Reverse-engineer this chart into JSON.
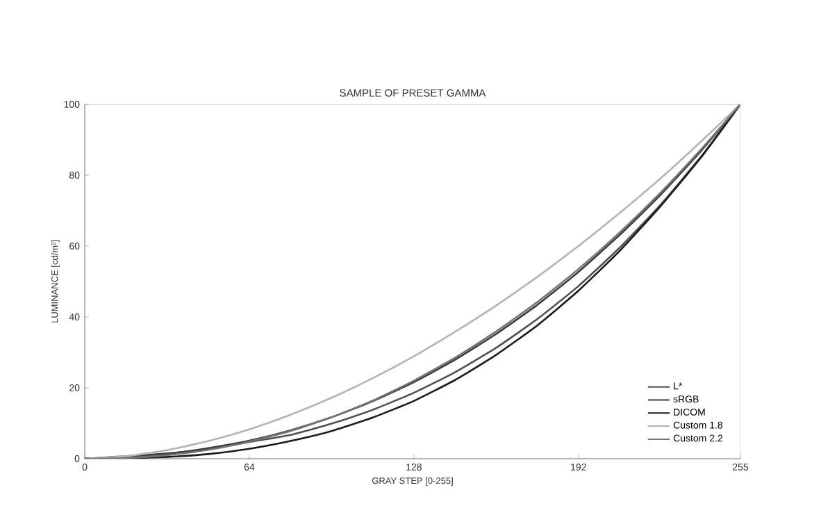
{
  "chart_data": {
    "type": "line",
    "title": "SAMPLE OF PRESET GAMMA",
    "xlabel": "GRAY STEP [0-255]",
    "ylabel": "LUMINANCE [cd/m²]",
    "x": [
      0,
      16,
      32,
      48,
      64,
      80,
      96,
      112,
      128,
      144,
      160,
      176,
      192,
      208,
      224,
      240,
      255
    ],
    "xlim": [
      0,
      255
    ],
    "xticks": [
      0,
      64,
      128,
      192,
      255
    ],
    "ylim": [
      0,
      100
    ],
    "yticks": [
      0,
      20,
      40,
      60,
      80,
      100
    ],
    "grid": false,
    "legend": "bottom right",
    "marker": "none",
    "line_style": "solid",
    "series": [
      {
        "name": "L*",
        "color": "#505050",
        "values": [
          0,
          0.7,
          1.5,
          2.7,
          4.7,
          6.7,
          9.9,
          13.8,
          18.6,
          24.4,
          31.3,
          39.4,
          48.7,
          59.5,
          71.7,
          85.5,
          100
        ]
      },
      {
        "name": "sRGB",
        "color": "#3c3c3c",
        "values": [
          0,
          0.5,
          1.4,
          3,
          5.1,
          8,
          11.7,
          16.2,
          21.6,
          27.9,
          35.2,
          43.4,
          52.7,
          63.1,
          74.5,
          87.1,
          100
        ]
      },
      {
        "name": "DICOM",
        "color": "#1a1a1a",
        "values": [
          0,
          0.1,
          0.5,
          1.3,
          2.8,
          5,
          7.8,
          11.6,
          16.3,
          22.2,
          29.3,
          37.6,
          47.4,
          58.6,
          71.3,
          85.3,
          100
        ]
      },
      {
        "name": "Custom 1.8",
        "color": "#b4b4b4",
        "values": [
          0,
          0.7,
          2.4,
          5,
          8.3,
          12.4,
          17.2,
          22.7,
          28.9,
          35.8,
          43.2,
          51.3,
          60,
          69.3,
          79.1,
          89.7,
          100
        ]
      },
      {
        "name": "Custom 2.2",
        "color": "#747474",
        "values": [
          0,
          0.2,
          1,
          2.5,
          4.8,
          7.8,
          11.7,
          16.4,
          22,
          28.5,
          35.9,
          44.2,
          53.5,
          63.8,
          75.1,
          87.5,
          100
        ]
      }
    ]
  }
}
